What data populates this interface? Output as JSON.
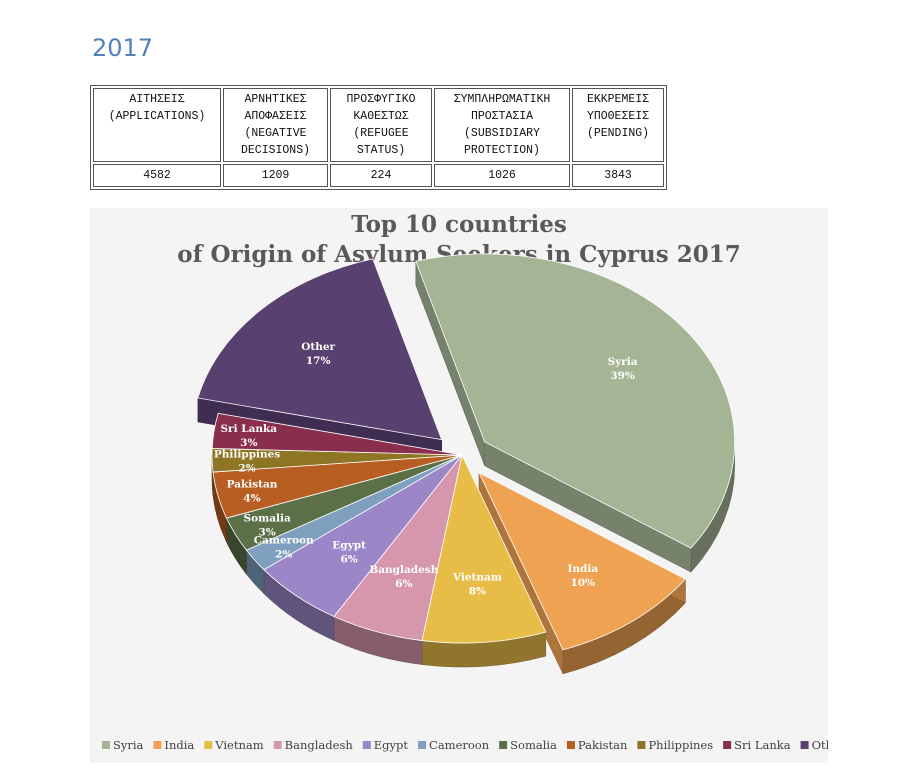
{
  "heading": {
    "year": "2017"
  },
  "table": {
    "headers": [
      "ΑΙΤΗΣΕΙΣ\n(APPLICATIONS)",
      "ΑΡΝΗΤΙΚΕΣ\nΑΠΟΦΑΣΕΙΣ\n(NEGATIVE\nDECISIONS)",
      "ΠΡΟΣΦΥΓΙΚΟ\nΚΑΘΕΣΤΩΣ\n(REFUGEE\nSTATUS)",
      "ΣΥΜΠΛΗΡΩΜΑΤΙΚΗ\nΠΡΟΣΤΑΣΙΑ\n(SUBSIDIARY\nPROTECTION)",
      "ΕΚΚΡΕΜΕΙΣ\nΥΠΟΘΕΣΕΙΣ\n(PENDING)"
    ],
    "values": [
      "4582",
      "1209",
      "224",
      "1026",
      "3843"
    ]
  },
  "chart_data": {
    "type": "pie",
    "title": [
      "Top 10 countries",
      "of Origin of Asylum Seekers in Cyprus 2017"
    ],
    "legend_position": "bottom",
    "categories": [
      "Syria",
      "India",
      "Vietnam",
      "Bangladesh",
      "Egypt",
      "Cameroon",
      "Somalia",
      "Pakistan",
      "Philippines",
      "Sri Lanka",
      "Other"
    ],
    "values": [
      39,
      10,
      8,
      6,
      6,
      2,
      3,
      4,
      2,
      3,
      17
    ],
    "labels": [
      "39%",
      "10%",
      "8%",
      "6%",
      "6%",
      "2%",
      "3%",
      "4%",
      "2%",
      "3%",
      "17%"
    ],
    "colors": [
      "#a4b494",
      "#f0a253",
      "#e8bd47",
      "#d696ac",
      "#9b87c8",
      "#7f9fbe",
      "#5c7048",
      "#b85e22",
      "#8d7524",
      "#8a2e4e",
      "#584070"
    ],
    "exploded": [
      "Syria",
      "India",
      "Other"
    ]
  }
}
